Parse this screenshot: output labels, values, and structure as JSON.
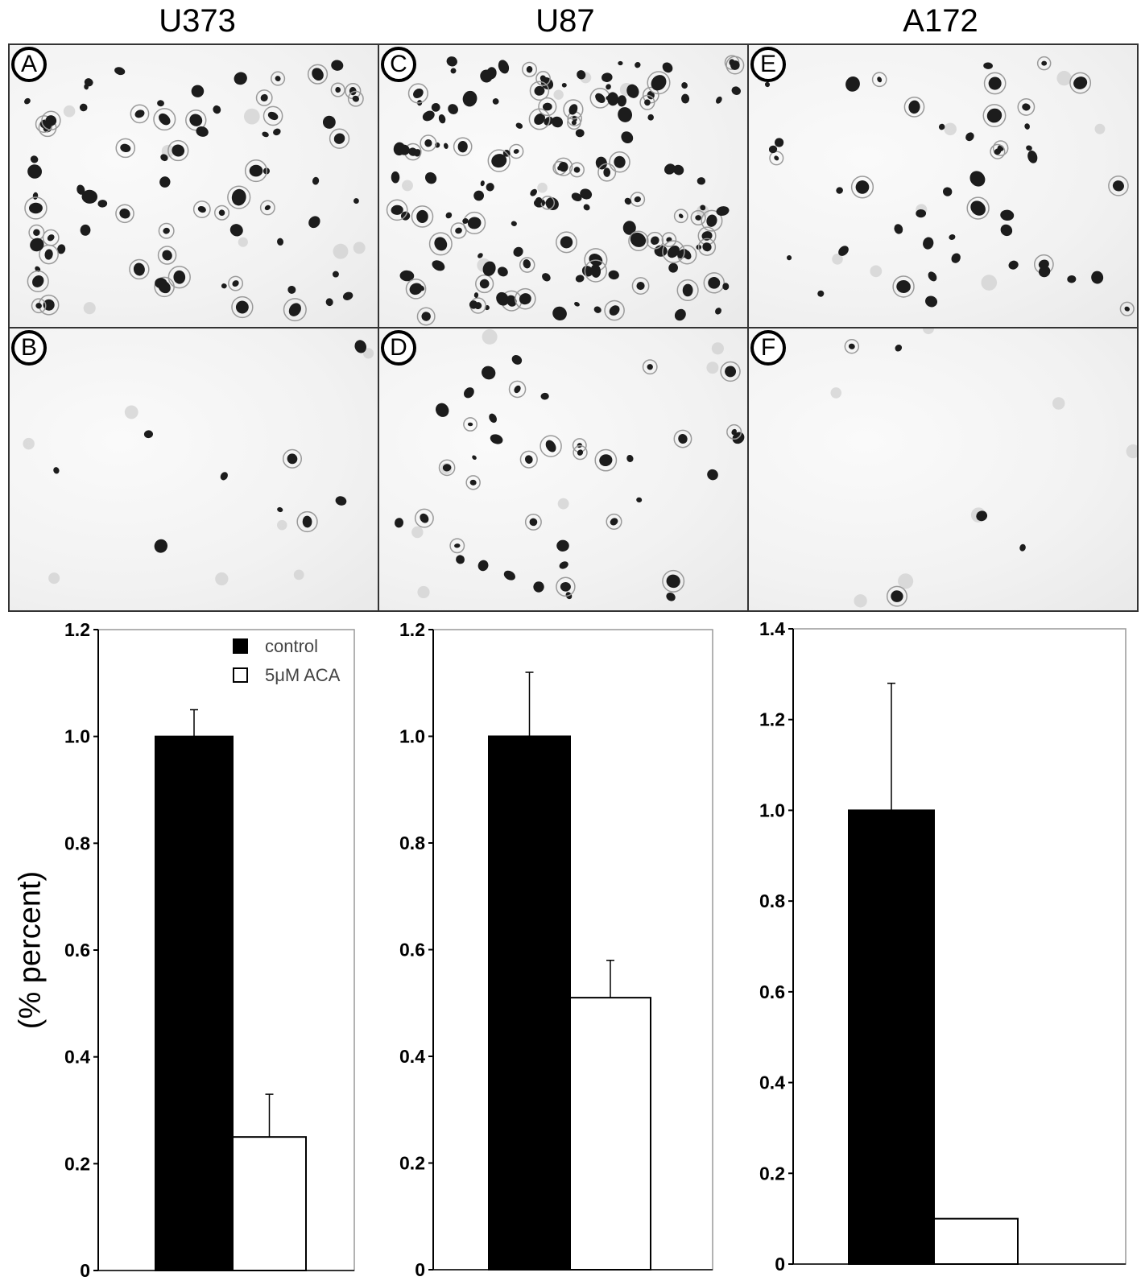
{
  "columns": [
    {
      "title": "U373",
      "top_label": "A",
      "bottom_label": "B"
    },
    {
      "title": "U87",
      "top_label": "C",
      "bottom_label": "D"
    },
    {
      "title": "A172",
      "top_label": "E",
      "bottom_label": "F"
    }
  ],
  "y_axis_label": "(% percent)",
  "legend": [
    {
      "label": "control",
      "color": "#000000"
    },
    {
      "label": "5μM ACA",
      "color": "#ffffff"
    }
  ],
  "chart_data": [
    {
      "type": "bar",
      "categories": [
        "control",
        "5μM ACA"
      ],
      "values": [
        1.0,
        0.25
      ],
      "errors": [
        0.05,
        0.08
      ],
      "ylim": [
        0,
        1.2
      ],
      "yticks": [
        "0",
        "0.2",
        "0.4",
        "0.6",
        "0.8",
        "1.0",
        "1.2"
      ],
      "ylabel": "(% percent)",
      "legend": "top-right",
      "grid": false
    },
    {
      "type": "bar",
      "categories": [
        "control",
        "5μM ACA"
      ],
      "values": [
        1.0,
        0.51
      ],
      "errors": [
        0.12,
        0.07
      ],
      "ylim": [
        0,
        1.2
      ],
      "yticks": [
        "0",
        "0.2",
        "0.4",
        "0.6",
        "0.8",
        "1.0",
        "1.2"
      ],
      "grid": false
    },
    {
      "type": "bar",
      "categories": [
        "control",
        "5μM ACA"
      ],
      "values": [
        1.0,
        0.1
      ],
      "errors": [
        0.28,
        0
      ],
      "ylim": [
        0,
        1.4
      ],
      "yticks": [
        "0",
        "0.2",
        "0.4",
        "0.6",
        "0.8",
        "1.0",
        "1.2",
        "1.4"
      ],
      "grid": false
    }
  ]
}
